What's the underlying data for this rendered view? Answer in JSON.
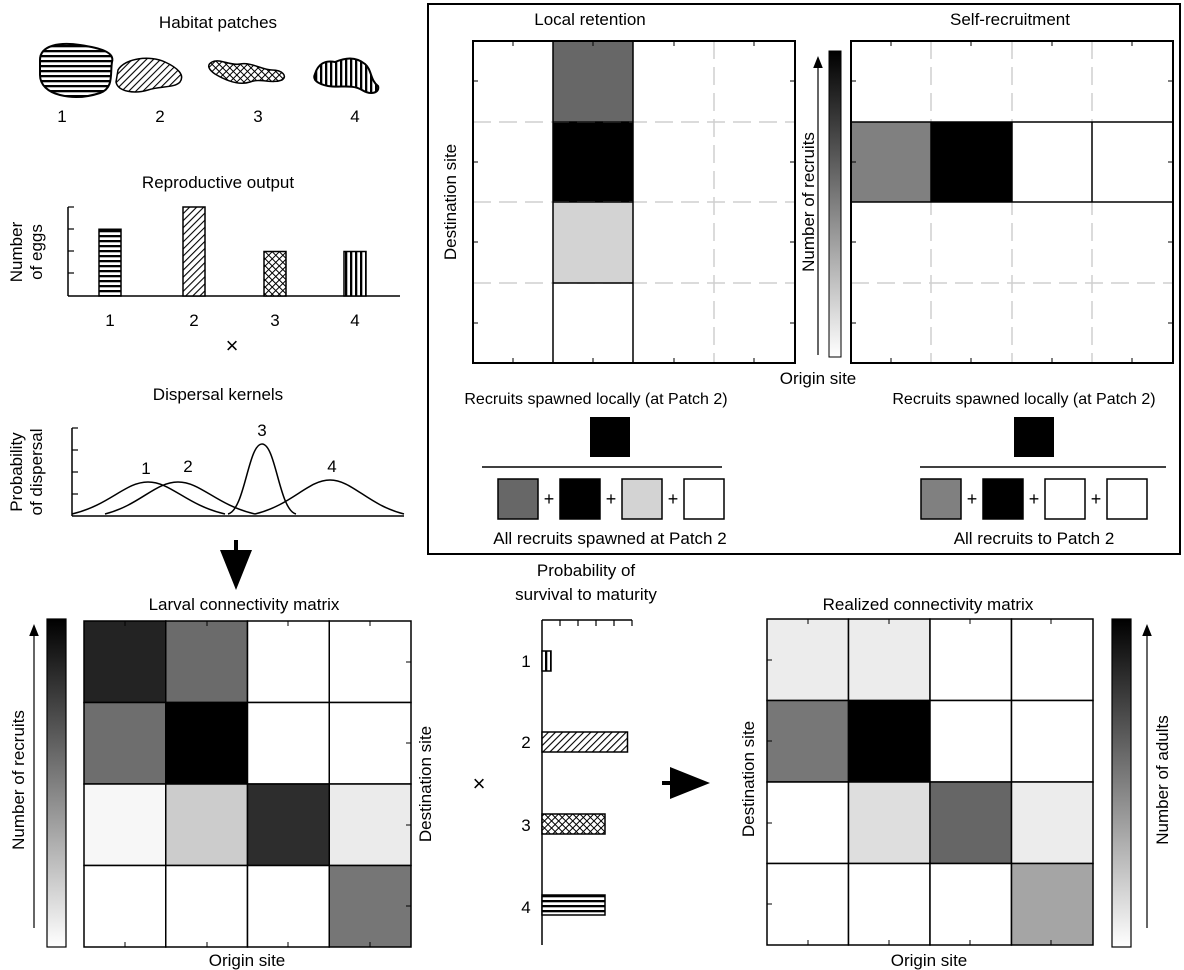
{
  "habitat": {
    "title": "Habitat patches",
    "labels": [
      "1",
      "2",
      "3",
      "4"
    ]
  },
  "repro": {
    "title": "Reproductive output",
    "ylabel_line1": "Number",
    "ylabel_line2": "of eggs",
    "categories": [
      "1",
      "2",
      "3",
      "4"
    ],
    "values": [
      3,
      4,
      2,
      2
    ],
    "ymax": 4
  },
  "times_symbol": "×",
  "dispersal": {
    "title": "Dispersal kernels",
    "ylabel_line1": "Probability",
    "ylabel_line2": "of dispersal",
    "kernel_labels": [
      "1",
      "2",
      "3",
      "4"
    ]
  },
  "inset": {
    "local_title": "Local retention",
    "self_title": "Self-recruitment",
    "destination_label": "Destination site",
    "origin_label": "Origin site",
    "colorbar_label": "Number of recruits",
    "local_numerator_label": "Recruits spawned locally (at Patch 2)",
    "self_numerator_label": "Recruits spawned locally (at Patch 2)",
    "local_denominator_label": "All recruits spawned at Patch 2",
    "self_denominator_label": "All recruits to Patch 2",
    "plus": "+",
    "local_column_shades": [
      "#676767",
      "#000000",
      "#d3d3d3",
      "#ffffff"
    ],
    "self_row_shades": [
      "#808080",
      "#000000",
      "#ffffff",
      "#ffffff"
    ]
  },
  "larval": {
    "title": "Larval connectivity matrix",
    "colorbar_label": "Number of recruits",
    "destination_label": "Destination site",
    "origin_label": "Origin site",
    "matrix_shades": [
      [
        "#232323",
        "#6b6b6b",
        "#ffffff",
        "#ffffff"
      ],
      [
        "#6e6e6e",
        "#000000",
        "#ffffff",
        "#ffffff"
      ],
      [
        "#f7f7f7",
        "#cccccc",
        "#2d2d2d",
        "#ebebeb"
      ],
      [
        "#ffffff",
        "#ffffff",
        "#ffffff",
        "#767676"
      ]
    ]
  },
  "survival": {
    "title_line1": "Probability of",
    "title_line2": "survival to maturity",
    "categories": [
      "1",
      "2",
      "3",
      "4"
    ],
    "values": [
      0.1,
      0.95,
      0.7,
      0.7
    ]
  },
  "realized": {
    "title": "Realized connectivity matrix",
    "colorbar_label": "Number of adults",
    "destination_label": "Destination site",
    "origin_label": "Origin site",
    "matrix_shades": [
      [
        "#ececec",
        "#ececec",
        "#ffffff",
        "#ffffff"
      ],
      [
        "#777777",
        "#000000",
        "#ffffff",
        "#ffffff"
      ],
      [
        "#ffffff",
        "#dedede",
        "#666666",
        "#ececec"
      ],
      [
        "#ffffff",
        "#ffffff",
        "#ffffff",
        "#a5a5a5"
      ]
    ]
  }
}
